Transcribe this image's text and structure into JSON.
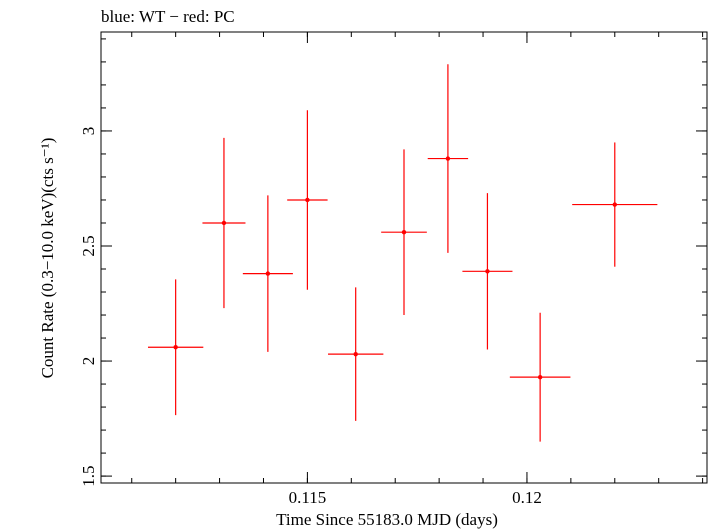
{
  "chart_data": {
    "type": "scatter",
    "title": "blue: WT − red: PC",
    "xlabel": "Time Since 55183.0 MJD (days)",
    "ylabel": "Count Rate (0.3−10.0 keV)(cts s⁻¹)",
    "xlim": [
      0.1103,
      0.1241
    ],
    "ylim": [
      1.47,
      3.43
    ],
    "x_ticks": [
      {
        "value": 0.115,
        "label": "0.115"
      },
      {
        "value": 0.12,
        "label": "0.12"
      }
    ],
    "y_ticks": [
      {
        "value": 1.5,
        "label": "1.5"
      },
      {
        "value": 2,
        "label": "2"
      },
      {
        "value": 2.5,
        "label": "2.5"
      },
      {
        "value": 3,
        "label": "3"
      }
    ],
    "x_minor_step": 0.001,
    "y_minor_step": 0.1,
    "grid": false,
    "legend": "none",
    "series": [
      {
        "name": "PC",
        "color": "#ff0000",
        "points": [
          {
            "x": 0.112,
            "xerr": 0.00063,
            "y": 2.06,
            "yerr": 0.295
          },
          {
            "x": 0.1131,
            "xerr": 0.00049,
            "y": 2.6,
            "yerr": 0.37
          },
          {
            "x": 0.1141,
            "xerr": 0.00057,
            "y": 2.38,
            "yerr": 0.34
          },
          {
            "x": 0.115,
            "xerr": 0.00046,
            "y": 2.7,
            "yerr": 0.39
          },
          {
            "x": 0.1161,
            "xerr": 0.00063,
            "y": 2.03,
            "yerr": 0.29
          },
          {
            "x": 0.1172,
            "xerr": 0.00052,
            "y": 2.56,
            "yerr": 0.36
          },
          {
            "x": 0.1182,
            "xerr": 0.00046,
            "y": 2.88,
            "yerr": 0.41
          },
          {
            "x": 0.1191,
            "xerr": 0.00057,
            "y": 2.39,
            "yerr": 0.34
          },
          {
            "x": 0.1203,
            "xerr": 0.00069,
            "y": 1.93,
            "yerr": 0.28
          },
          {
            "x": 0.122,
            "xerr": 0.00097,
            "y": 2.68,
            "yerr": 0.27
          }
        ]
      }
    ]
  }
}
